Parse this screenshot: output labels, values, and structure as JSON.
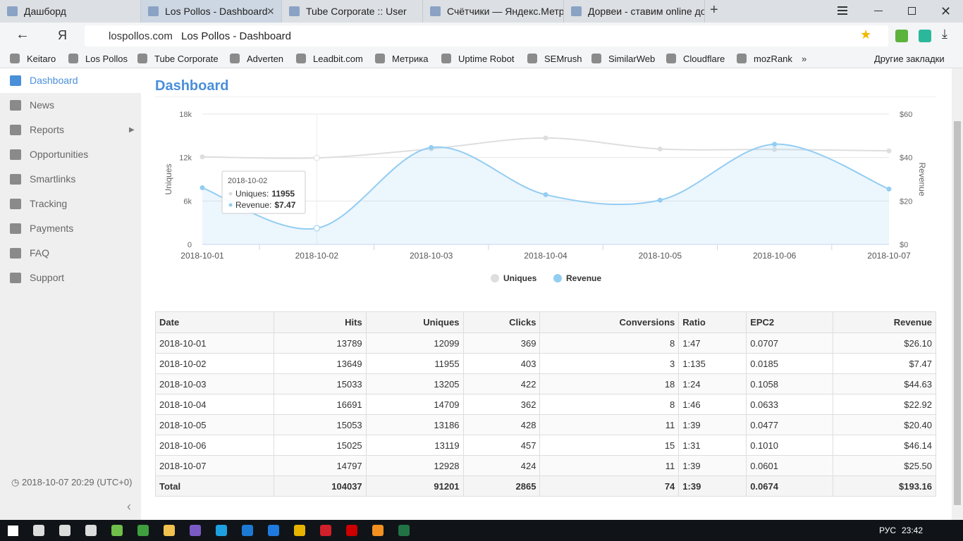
{
  "browser": {
    "tabs": [
      "Дашборд",
      "Los Pollos - Dashboard",
      "Tube Corporate :: User",
      "Счётчики — Яндекс.Метри",
      "Дорвеи - ставим online до"
    ],
    "address": {
      "domain": "lospollos.com",
      "page_title": "Los Pollos - Dashboard"
    },
    "bookmarks": [
      "Keitaro",
      "Los Pollos",
      "Tube Corporate",
      "Adverten",
      "Leadbit.com",
      "Метрика",
      "Uptime Robot",
      "SEMrush",
      "SimilarWeb",
      "Cloudflare",
      "mozRank"
    ],
    "other_bookmarks": "Другие закладки"
  },
  "sidebar": {
    "items": [
      "Dashboard",
      "News",
      "Reports",
      "Opportunities",
      "Smartlinks",
      "Tracking",
      "Payments",
      "FAQ",
      "Support"
    ],
    "clock": "2018-10-07 20:29 (UTC+0)"
  },
  "dashboard": {
    "title": "Dashboard",
    "chart": {
      "type": "line",
      "categories": [
        "2018-10-01",
        "2018-10-02",
        "2018-10-03",
        "2018-10-04",
        "2018-10-05",
        "2018-10-06",
        "2018-10-07"
      ],
      "series": [
        {
          "name": "Uniques",
          "color": "#dedede",
          "values": [
            12099,
            11955,
            13205,
            14709,
            13186,
            13119,
            12928
          ]
        },
        {
          "name": "Revenue",
          "color": "#93cdf2",
          "axis": "y2",
          "values": [
            26.1,
            7.47,
            44.63,
            22.92,
            20.4,
            46.14,
            25.5
          ]
        }
      ],
      "ylabel": "Uniques",
      "y2label": "Revenue",
      "ylim": [
        0,
        18000
      ],
      "yticks": [
        0,
        {
          "value": 6000,
          "label": "6k"
        },
        {
          "value": 12000,
          "label": "12k"
        },
        {
          "value": 18000,
          "label": "18k"
        }
      ],
      "y2lim": [
        0,
        60
      ],
      "y2ticks": [
        {
          "value": 0,
          "label": "$0"
        },
        {
          "value": 20,
          "label": "$20"
        },
        {
          "value": 40,
          "label": "$40"
        },
        {
          "value": 60,
          "label": "$60"
        }
      ],
      "grid": true,
      "tooltip": {
        "title": "2018-10-02",
        "lines": [
          {
            "label": "Uniques:",
            "value": "11955"
          },
          {
            "label": "Revenue:",
            "value": "$7.47"
          }
        ]
      }
    },
    "table": {
      "columns": [
        "Date",
        "Hits",
        "Uniques",
        "Clicks",
        "Conversions",
        "Ratio",
        "EPC2",
        "Revenue"
      ],
      "rows": [
        [
          "2018-10-01",
          "13789",
          "12099",
          "369",
          "8",
          "1:47",
          "0.0707",
          "$26.10"
        ],
        [
          "2018-10-02",
          "13649",
          "11955",
          "403",
          "3",
          "1:135",
          "0.0185",
          "$7.47"
        ],
        [
          "2018-10-03",
          "15033",
          "13205",
          "422",
          "18",
          "1:24",
          "0.1058",
          "$44.63"
        ],
        [
          "2018-10-04",
          "16691",
          "14709",
          "362",
          "8",
          "1:46",
          "0.0633",
          "$22.92"
        ],
        [
          "2018-10-05",
          "15053",
          "13186",
          "428",
          "11",
          "1:39",
          "0.0477",
          "$20.40"
        ],
        [
          "2018-10-06",
          "15025",
          "13119",
          "457",
          "15",
          "1:31",
          "0.1010",
          "$46.14"
        ],
        [
          "2018-10-07",
          "14797",
          "12928",
          "424",
          "11",
          "1:39",
          "0.0601",
          "$25.50"
        ]
      ],
      "total": [
        "Total",
        "104037",
        "91201",
        "2865",
        "74",
        "1:39",
        "0.0674",
        "$193.16"
      ]
    }
  },
  "taskbar": {
    "language": "РУС",
    "time": "23:42"
  }
}
